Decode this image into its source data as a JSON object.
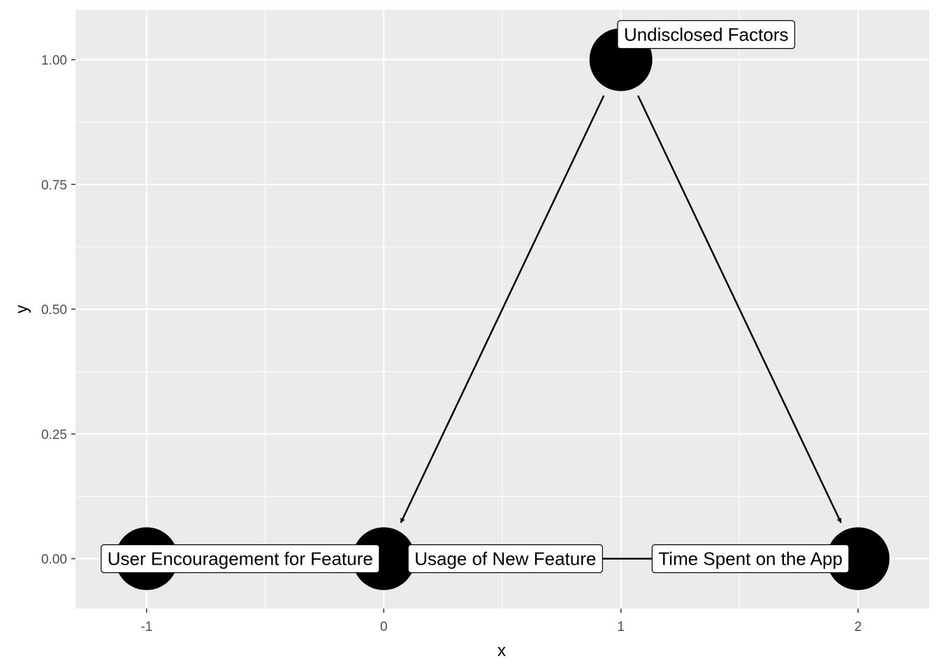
{
  "chart_data": {
    "type": "scatter",
    "title": "",
    "xlabel": "x",
    "ylabel": "y",
    "xlim": [
      -1.3,
      2.3
    ],
    "ylim": [
      -0.1,
      1.1
    ],
    "grid": true,
    "x_ticks": [
      {
        "value": -1,
        "label": "-1"
      },
      {
        "value": 0,
        "label": "0"
      },
      {
        "value": 1,
        "label": "1"
      },
      {
        "value": 2,
        "label": "2"
      }
    ],
    "y_ticks": [
      {
        "value": 0,
        "label": "0.00"
      },
      {
        "value": 0.25,
        "label": "0.25"
      },
      {
        "value": 0.5,
        "label": "0.50"
      },
      {
        "value": 0.75,
        "label": "0.75"
      },
      {
        "value": 1,
        "label": "1.00"
      }
    ],
    "nodes": [
      {
        "id": "encouragement",
        "x": -1,
        "y": 0,
        "label": "User Encouragement for Feature"
      },
      {
        "id": "usage",
        "x": 0,
        "y": 0,
        "label": "Usage of New Feature"
      },
      {
        "id": "factors",
        "x": 1,
        "y": 1,
        "label": "Undisclosed Factors"
      },
      {
        "id": "time",
        "x": 2,
        "y": 0,
        "label": "Time Spent on the App"
      }
    ],
    "edges": [
      {
        "from": "factors",
        "to": "usage"
      },
      {
        "from": "factors",
        "to": "time"
      },
      {
        "from": "encouragement",
        "to": "usage"
      },
      {
        "from": "usage",
        "to": "time"
      }
    ],
    "colors": {
      "panel": "#ebebeb",
      "grid": "#ffffff",
      "node": "#000000",
      "label_fill": "#ffffff"
    }
  }
}
